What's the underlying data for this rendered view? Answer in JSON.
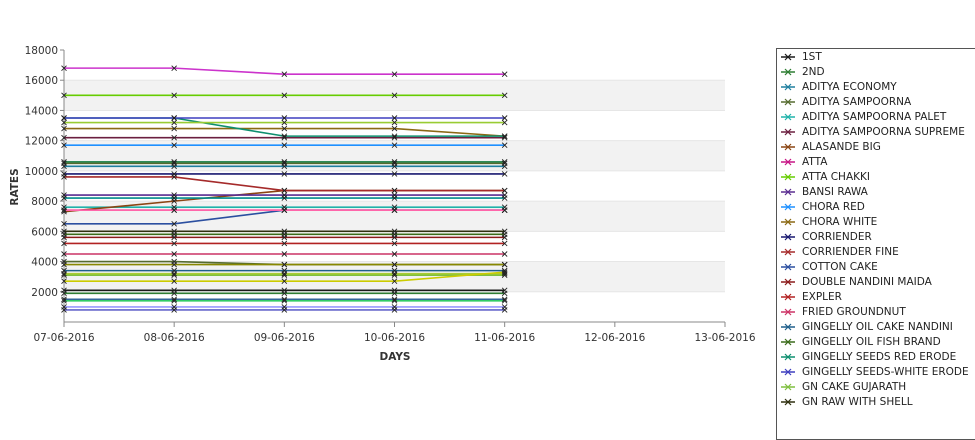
{
  "chart_data": {
    "type": "line",
    "xlabel": "DAYS",
    "ylabel": "RATES",
    "x_ticks": [
      "07-06-2016",
      "08-06-2016",
      "09-06-2016",
      "10-06-2016",
      "11-06-2016",
      "12-06-2016",
      "13-06-2016"
    ],
    "y_ticks": [
      2000,
      4000,
      6000,
      8000,
      10000,
      12000,
      14000,
      16000,
      18000
    ],
    "ylim": [
      0,
      18000
    ],
    "grid": "alternating horizontal bands",
    "legend_position": "right",
    "series": [
      {
        "name": "1ST",
        "color": "#1a1a1a",
        "values": [
          2100,
          2100,
          2100,
          2100,
          2100
        ]
      },
      {
        "name": "2ND",
        "color": "#2e7d32",
        "values": [
          1900,
          1900,
          1900,
          1900,
          1900
        ]
      },
      {
        "name": "ADITYA ECONOMY",
        "color": "#1f7f9f",
        "values": [
          10300,
          10300,
          10300,
          10300,
          10300
        ]
      },
      {
        "name": "ADITYA SAMPOORNA",
        "color": "#556b2f",
        "values": [
          10500,
          10500,
          10500,
          10500,
          10500
        ]
      },
      {
        "name": "ADITYA SAMPOORNA PALET",
        "color": "#20b2aa",
        "values": [
          7600,
          7600,
          7600,
          7600,
          7600
        ]
      },
      {
        "name": "ADITYA SAMPOORNA SUPREME",
        "color": "#6b1f3f",
        "values": [
          12200,
          12200,
          12200,
          12200,
          12200
        ]
      },
      {
        "name": "ALASANDE BIG",
        "color": "#8b4513",
        "values": [
          7300,
          8000,
          8700,
          8700,
          8700
        ]
      },
      {
        "name": "ATTA",
        "color": "#c71585",
        "values": [
          7400,
          7400,
          7400,
          7400,
          7400
        ]
      },
      {
        "name": "ATTA CHAKKI",
        "color": "#66cc00",
        "values": [
          15000,
          15000,
          15000,
          15000,
          15000
        ]
      },
      {
        "name": "BANSI RAWA",
        "color": "#5a2d91",
        "values": [
          8400,
          8400,
          8400,
          8400,
          8400
        ]
      },
      {
        "name": "CHORA RED",
        "color": "#1e90ff",
        "values": [
          11700,
          11700,
          11700,
          11700,
          11700
        ]
      },
      {
        "name": "CHORA WHITE",
        "color": "#8b6914",
        "values": [
          12800,
          12800,
          12800,
          12800,
          12300
        ]
      },
      {
        "name": "CORRIENDER",
        "color": "#191970",
        "values": [
          9800,
          9800,
          9800,
          9800,
          9800
        ]
      },
      {
        "name": "CORRIENDER FINE",
        "color": "#a52a2a",
        "values": [
          9600,
          9600,
          8700,
          8700,
          8700
        ]
      },
      {
        "name": "COTTON CAKE",
        "color": "#2b4fa0",
        "values": [
          6500,
          6500,
          7400,
          7400,
          7400
        ]
      },
      {
        "name": "DOUBLE NANDINI MAIDA",
        "color": "#8b1a1a",
        "values": [
          5600,
          5600,
          5600,
          5600,
          5600
        ]
      },
      {
        "name": "EXPLER",
        "color": "#b22222",
        "values": [
          5200,
          5200,
          5200,
          5200,
          5200
        ]
      },
      {
        "name": "FRIED GROUNDNUT",
        "color": "#cc3366",
        "values": [
          4500,
          4500,
          4500,
          4500,
          4500
        ]
      },
      {
        "name": "GINGELLY OIL CAKE NANDINI",
        "color": "#1f5f8b",
        "values": [
          3400,
          3400,
          3400,
          3400,
          3400
        ]
      },
      {
        "name": "GINGELLY OIL FISH BRAND",
        "color": "#3a6b1a",
        "values": [
          5800,
          5800,
          5800,
          5800,
          5800
        ]
      },
      {
        "name": "GINGELLY SEEDS RED ERODE",
        "color": "#0d8f6f",
        "values": [
          13500,
          13500,
          12300,
          12300,
          12300
        ]
      },
      {
        "name": "GINGELLY SEEDS-WHITE ERODE",
        "color": "#3f3fbf",
        "values": [
          13500,
          13500,
          13500,
          13500,
          13500
        ]
      },
      {
        "name": "GN CAKE GUJARATH",
        "color": "#7fbf3f",
        "values": [
          3100,
          3100,
          3100,
          3100,
          3100
        ]
      },
      {
        "name": "GN RAW WITH SHELL",
        "color": "#2f2f0f",
        "values": [
          6000,
          6000,
          6000,
          6000,
          6000
        ]
      },
      {
        "name": "",
        "color": "#cc33cc",
        "values": [
          16800,
          16800,
          16400,
          16400,
          16400
        ]
      },
      {
        "name": "",
        "color": "#99cc33",
        "values": [
          13200,
          13200,
          13200,
          13200,
          13200
        ]
      },
      {
        "name": "",
        "color": "#2e8b57",
        "values": [
          10600,
          10600,
          10600,
          10600,
          10600
        ]
      },
      {
        "name": "",
        "color": "#008b8b",
        "values": [
          8200,
          8200,
          8200,
          8200,
          8200
        ]
      },
      {
        "name": "",
        "color": "#ff66aa",
        "values": [
          7400,
          7400,
          7400,
          7400,
          7400
        ]
      },
      {
        "name": "",
        "color": "#556b2f",
        "values": [
          4000,
          4000,
          3800,
          3800,
          3800
        ]
      },
      {
        "name": "",
        "color": "#888800",
        "values": [
          3800,
          3800,
          3800,
          3800,
          3800
        ]
      },
      {
        "name": "",
        "color": "#aacc33",
        "values": [
          3200,
          3200,
          3200,
          3200,
          3200
        ]
      },
      {
        "name": "",
        "color": "#cccc00",
        "values": [
          2700,
          2700,
          2700,
          2700,
          3300
        ]
      },
      {
        "name": "",
        "color": "#336699",
        "values": [
          1500,
          1500,
          1500,
          1500,
          1500
        ]
      },
      {
        "name": "",
        "color": "#33cc66",
        "values": [
          1400,
          1400,
          1400,
          1400,
          1400
        ]
      },
      {
        "name": "",
        "color": "#6666cc",
        "values": [
          800,
          800,
          800,
          800,
          800
        ]
      },
      {
        "name": "",
        "color": "#9999ff",
        "values": [
          1000,
          1000,
          1000,
          1000,
          1000
        ]
      }
    ]
  }
}
